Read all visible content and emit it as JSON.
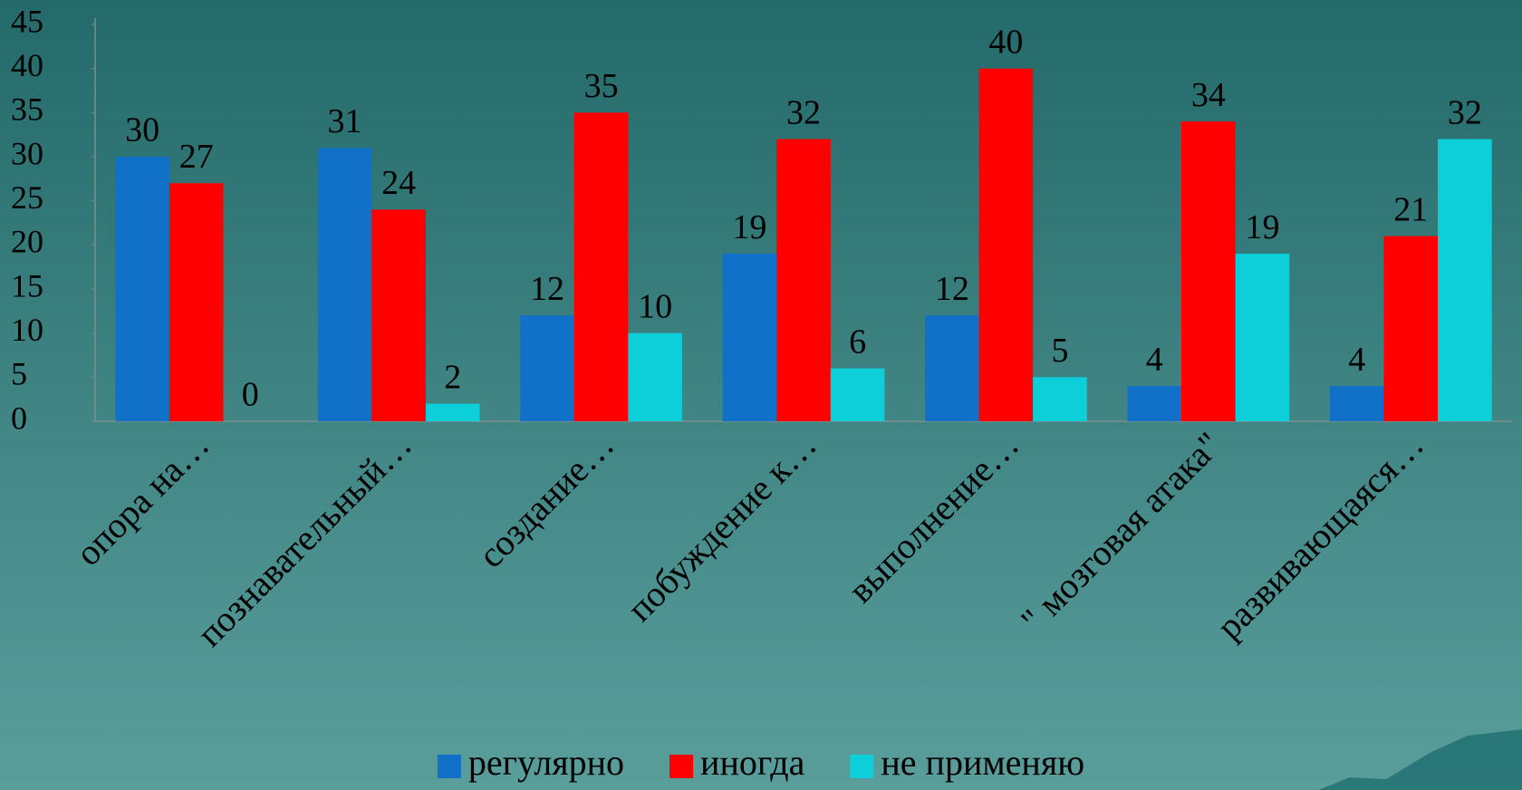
{
  "chart_data": {
    "type": "bar",
    "categories": [
      "опора на…",
      "познавательный…",
      "создание…",
      "побуждение к…",
      "выполнение…",
      "\" мозговая атака\"",
      "развивающаяся…"
    ],
    "series": [
      {
        "name": "регулярно",
        "color": "#1170c8",
        "values": [
          30,
          31,
          12,
          19,
          12,
          4,
          4
        ]
      },
      {
        "name": "иногда",
        "color": "#ff0000",
        "values": [
          27,
          24,
          35,
          32,
          40,
          34,
          21
        ]
      },
      {
        "name": "не применяю",
        "color": "#0ccfd9",
        "values": [
          0,
          2,
          10,
          6,
          5,
          19,
          32
        ]
      }
    ],
    "ylim": [
      0,
      45
    ],
    "yticks": [
      0,
      5,
      10,
      15,
      20,
      25,
      30,
      35,
      40,
      45
    ],
    "legend": "bottom"
  }
}
